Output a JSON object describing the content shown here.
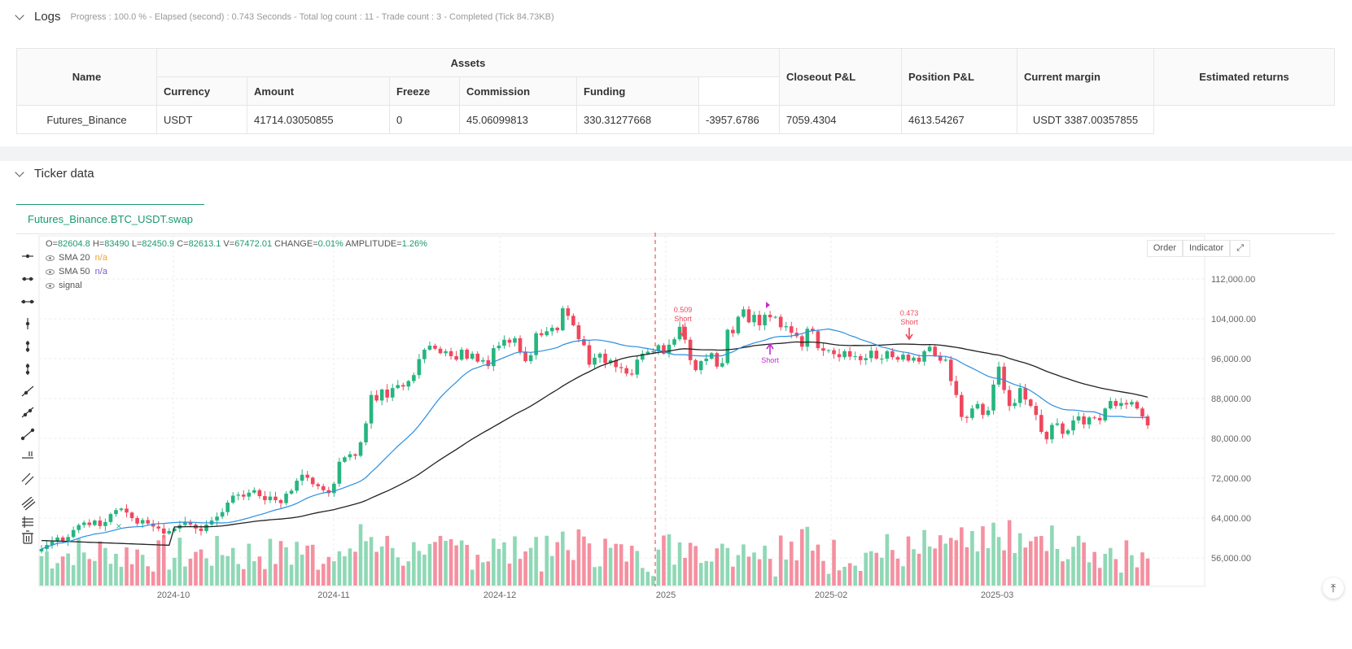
{
  "logs": {
    "title": "Logs",
    "meta": "Progress : 100.0 % - Elapsed (second) : 0.743  Seconds - Total log count : 11 - Trade count : 3 - Completed (Tick 84.73KB)"
  },
  "assets_table": {
    "group_header": "Assets",
    "headers": {
      "name": "Name",
      "currency": "Currency",
      "amount": "Amount",
      "freeze": "Freeze",
      "commission": "Commission",
      "funding": "Funding",
      "closeout": "Closeout P&L",
      "position": "Position P&L",
      "margin": "Current margin",
      "returns": "Estimated returns"
    },
    "row": {
      "name": "Futures_Binance",
      "currency": "USDT",
      "amount": "41714.03050855",
      "freeze": "0",
      "commission": "45.06099813",
      "funding": "330.31277668",
      "closeout": "-3957.6786",
      "position": "7059.4304",
      "margin": "4613.54267",
      "returns": "USDT 3387.00357855"
    }
  },
  "ticker": {
    "title": "Ticker data",
    "tab": "Futures_Binance.BTC_USDT.swap",
    "ohlc": {
      "o_label": "O=",
      "o": "82604.8",
      "h_label": "H=",
      "h": "83490",
      "l_label": "L=",
      "l": "82450.9",
      "c_label": "C=",
      "c": "82613.1",
      "v_label": "V=",
      "v": "67472.01",
      "change_label": "CHANGE=",
      "change": "0.01%",
      "amp_label": "AMPLITUDE=",
      "amp": "1.26%"
    },
    "indicators": [
      {
        "name": "SMA 20",
        "value": "n/a"
      },
      {
        "name": "SMA 50",
        "value": "n/a"
      },
      {
        "name": "signal",
        "value": ""
      }
    ],
    "buttons": {
      "order": "Order",
      "indicator": "Indicator"
    }
  },
  "chart_data": {
    "type": "candlestick",
    "x_ticks": [
      "2024-10",
      "2024-11",
      "2024-12",
      "2025",
      "2025-02",
      "2025-03"
    ],
    "y_ticks": [
      "112,000.00",
      "104,000.00",
      "96,000.00",
      "88,000.00",
      "80,000.00",
      "72,000.00",
      "64,000.00",
      "56,000.00"
    ],
    "y_tick_values": [
      112000,
      104000,
      96000,
      88000,
      80000,
      72000,
      64000,
      56000
    ],
    "ylim": [
      50000,
      116000
    ],
    "colors": {
      "up": "#26b57f",
      "down": "#f0475c",
      "sma20": "#2a8fe0",
      "sma50": "#222222",
      "signal": "#c42bd6"
    },
    "closes": [
      57800,
      58600,
      59300,
      60100,
      59400,
      60200,
      61600,
      62600,
      63100,
      62600,
      63500,
      62400,
      63200,
      64800,
      65600,
      65900,
      65100,
      64000,
      62900,
      63600,
      62900,
      62300,
      61900,
      60900,
      61400,
      61900,
      62600,
      63200,
      62700,
      61900,
      61400,
      62700,
      63500,
      64300,
      65200,
      67100,
      68500,
      68700,
      68300,
      69100,
      69600,
      68400,
      67600,
      68300,
      67600,
      67000,
      68900,
      69500,
      71500,
      72700,
      72100,
      70800,
      70400,
      69600,
      69000,
      70900,
      75300,
      76200,
      76800,
      76500,
      79200,
      83000,
      88700,
      87600,
      89800,
      88200,
      90100,
      90700,
      90400,
      91500,
      92700,
      95900,
      97800,
      98600,
      98000,
      97100,
      97500,
      96500,
      95800,
      97800,
      96000,
      97000,
      95400,
      95700,
      94500,
      98100,
      98600,
      99800,
      99200,
      100100,
      97400,
      95500,
      96700,
      101100,
      100700,
      101500,
      102200,
      101700,
      106100,
      104600,
      102700,
      99900,
      98700,
      94800,
      96200,
      97000,
      95100,
      95700,
      94300,
      94100,
      93000,
      92800,
      95800,
      97000,
      97400,
      97500,
      98700,
      97000,
      98800,
      99900,
      102400,
      99800,
      95700,
      93700,
      95500,
      96000,
      97100,
      94400,
      95100,
      101800,
      101100,
      104400,
      105900,
      103300,
      104800,
      102700,
      104800,
      104300,
      104400,
      102300,
      102500,
      101200,
      100500,
      98400,
      102000,
      101500,
      98100,
      97600,
      97700,
      96900,
      96300,
      97500,
      96400,
      96500,
      95700,
      96100,
      97600,
      96000,
      96000,
      97500,
      96300,
      95800,
      96800,
      95600,
      96200,
      95400,
      97500,
      98400,
      96600,
      95600,
      95800,
      91500,
      88700,
      84300,
      84100,
      86000,
      86900,
      84700,
      85600,
      90800,
      94400,
      89700,
      86500,
      87100,
      90100,
      87800,
      86500,
      84700,
      81300,
      79800,
      82700,
      83000,
      80900,
      81600,
      83600,
      84400,
      82800,
      84200,
      84100,
      83600,
      86000,
      87500,
      86500,
      87100,
      86800,
      87300,
      86000,
      84400,
      82600
    ],
    "sma20_start": [
      57200,
      60000,
      61000,
      61500,
      62700
    ],
    "annotations": [
      {
        "label": "Short",
        "value": "0.509",
        "color": "#f0475c",
        "dir": "down"
      },
      {
        "label": "Short",
        "value": "0.473",
        "color": "#f0475c",
        "dir": "down"
      },
      {
        "label": "Short",
        "value": "",
        "color": "#c42bd6",
        "dir": "up"
      }
    ]
  }
}
